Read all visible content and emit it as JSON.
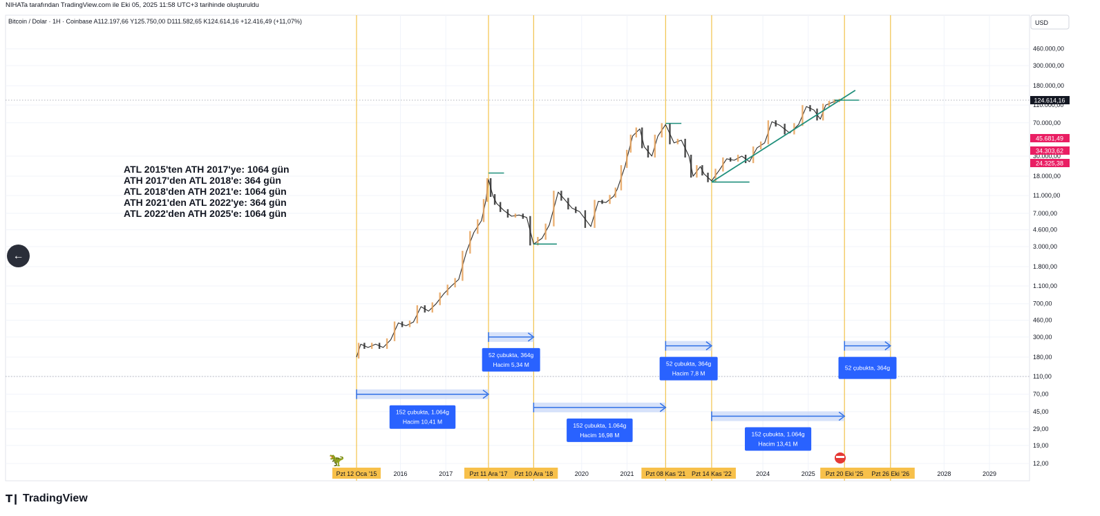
{
  "caption": "NIHATa tarafından TradingView.com ile Eki 05, 2025 11:58 UTC+3 tarihinde oluşturuldu",
  "symbol_line": "Bitcoin / Dolar · 1H · Coinbase  A112.197,66  Y125.750,00  D111.582,65  K124.614,16  +12.416,49 (+11,07%)",
  "currency_label": "USD",
  "brand": "TradingView",
  "colors": {
    "up": "#e8a25b",
    "down": "#2b2b2b",
    "vline": "#f2c34a",
    "trend": "#1f8f7b",
    "measure": "#2f6fe6",
    "measure_fill": "#c9d8f8",
    "box": "#2962ff",
    "price_tag": "#131722",
    "level_tag": "#e91e63",
    "axis_highlight": "#f7c04a"
  },
  "chart_data": {
    "type": "line",
    "title": "Bitcoin / Dolar · 1H · Coinbase",
    "y_scale": "log",
    "ylim": [
      10,
      700000
    ],
    "y_ticks": [
      "460.000,00",
      "300.000,00",
      "180.000,00",
      "110.000,00",
      "70.000,00",
      "30.000,00",
      "18.000,00",
      "11.000,00",
      "7.000,00",
      "4.600,00",
      "3.000,00",
      "1.800,00",
      "1.100,00",
      "700,00",
      "460,00",
      "300,00",
      "180,00",
      "110,00",
      "70,00",
      "45,00",
      "29,00",
      "19,00",
      "12,00"
    ],
    "y_tick_values": [
      460000,
      300000,
      180000,
      110000,
      70000,
      30000,
      18000,
      11000,
      7000,
      4600,
      3000,
      1800,
      1100,
      700,
      460,
      300,
      180,
      110,
      70,
      45,
      29,
      19,
      12
    ],
    "x_labels": [
      {
        "label": "Pzt 12 Oca '15",
        "date": "2015-01-12",
        "highlight": true
      },
      {
        "label": "2016",
        "date": "2016-01-01",
        "highlight": false
      },
      {
        "label": "2017",
        "date": "2017-01-01",
        "highlight": false
      },
      {
        "label": "Pzt 11 Ara '17",
        "date": "2017-12-11",
        "highlight": true
      },
      {
        "label": "Pzt 10 Ara '18",
        "date": "2018-12-10",
        "highlight": true
      },
      {
        "label": "2020",
        "date": "2020-01-01",
        "highlight": false
      },
      {
        "label": "2021",
        "date": "2021-01-01",
        "highlight": false
      },
      {
        "label": "Pzt 08 Kas '21",
        "date": "2021-11-08",
        "highlight": true
      },
      {
        "label": "Pzt 14 Kas '22",
        "date": "2022-11-14",
        "highlight": true
      },
      {
        "label": "2024",
        "date": "2024-01-01",
        "highlight": false
      },
      {
        "label": "2025",
        "date": "2025-01-01",
        "highlight": false
      },
      {
        "label": "Pzt 20 Eki '25",
        "date": "2025-10-20",
        "highlight": true
      },
      {
        "label": "Pzt 26 Eki '26",
        "date": "2026-10-26",
        "highlight": true
      },
      {
        "label": "2028",
        "date": "2028-01-01",
        "highlight": false
      },
      {
        "label": "2029",
        "date": "2029-01-01",
        "highlight": false
      }
    ],
    "vertical_lines": [
      "2015-01-12",
      "2017-12-11",
      "2018-12-10",
      "2021-11-08",
      "2022-11-14",
      "2025-10-20",
      "2026-10-26"
    ],
    "series": [
      {
        "x": [
          "2015-01-12",
          "2015-02-15",
          "2015-04-15",
          "2015-06-15",
          "2015-08-15",
          "2015-10-15",
          "2015-12-15",
          "2016-02-15",
          "2016-04-15",
          "2016-06-15",
          "2016-08-15",
          "2016-10-15",
          "2016-12-15",
          "2017-02-15",
          "2017-04-15",
          "2017-06-15",
          "2017-08-15",
          "2017-10-15",
          "2017-11-20",
          "2017-12-11",
          "2018-01-15",
          "2018-02-15",
          "2018-04-15",
          "2018-06-15",
          "2018-08-15",
          "2018-10-15",
          "2018-12-10",
          "2019-02-15",
          "2019-04-15",
          "2019-06-26",
          "2019-08-15",
          "2019-10-15",
          "2019-12-15",
          "2020-03-15",
          "2020-05-15",
          "2020-07-15",
          "2020-09-15",
          "2020-10-15",
          "2020-12-15",
          "2021-01-15",
          "2021-02-15",
          "2021-04-14",
          "2021-05-20",
          "2021-07-20",
          "2021-09-07",
          "2021-11-08",
          "2022-01-15",
          "2022-03-15",
          "2022-05-15",
          "2022-06-18",
          "2022-08-15",
          "2022-09-15",
          "2022-11-14",
          "2023-01-15",
          "2023-03-15",
          "2023-05-15",
          "2023-07-15",
          "2023-09-15",
          "2023-11-15",
          "2024-01-15",
          "2024-03-14",
          "2024-05-15",
          "2024-08-05",
          "2024-10-15",
          "2024-12-17",
          "2025-02-15",
          "2025-04-08",
          "2025-05-22",
          "2025-07-15",
          "2025-08-14",
          "2025-10-05"
        ],
        "y": [
          180,
          250,
          230,
          250,
          230,
          280,
          430,
          400,
          440,
          650,
          580,
          700,
          900,
          1100,
          1300,
          2600,
          4300,
          5800,
          9700,
          16500,
          11000,
          9000,
          7500,
          6500,
          6700,
          6300,
          3200,
          3700,
          5200,
          12000,
          10000,
          8000,
          7300,
          5000,
          9500,
          9200,
          10800,
          13000,
          23000,
          34000,
          50000,
          60000,
          38000,
          30000,
          50000,
          67000,
          42000,
          45000,
          30000,
          18000,
          23000,
          19000,
          16000,
          21000,
          28000,
          27000,
          30000,
          26000,
          37000,
          42000,
          72000,
          66000,
          54000,
          67000,
          106000,
          97000,
          77000,
          110000,
          118000,
          123000,
          124614
        ]
      }
    ],
    "last_price": "124.614,16",
    "levels": [
      "45.681,49",
      "34.303,62",
      "24.325,38"
    ],
    "annotations": [
      "ATL 2015'ten ATH 2017'ye: 1064 gün",
      "ATH 2017'den ATL 2018'e: 364 gün",
      "ATL 2018'den ATH 2021'e: 1064 gün",
      "ATH 2021'den ATL 2022'ye: 364 gün",
      "ATL 2022'den ATH 2025'e: 1064 gün"
    ],
    "measures": [
      {
        "from": "2015-01-12",
        "to": "2017-12-11",
        "y": 70,
        "line1": "152 çubukta, 1.064g",
        "line2": "Hacim 10,41 M"
      },
      {
        "from": "2017-12-11",
        "to": "2018-12-10",
        "y": 300,
        "line1": "52 çubukta, 364g",
        "line2": "Hacim 5,34 M"
      },
      {
        "from": "2018-12-10",
        "to": "2021-11-08",
        "y": 50,
        "line1": "152 çubukta, 1.064g",
        "line2": "Hacim 16,98 M"
      },
      {
        "from": "2021-11-08",
        "to": "2022-11-14",
        "y": 240,
        "line1": "52 çubukta, 364g",
        "line2": "Hacim 7,8 M"
      },
      {
        "from": "2022-11-14",
        "to": "2025-10-20",
        "y": 40,
        "line1": "152 çubukta, 1.064g",
        "line2": "Hacim 13,41 M"
      },
      {
        "from": "2025-10-20",
        "to": "2026-10-26",
        "y": 240,
        "line1": "52 çubukta, 364g",
        "line2": ""
      }
    ],
    "markers": [
      {
        "from": "2017-12-11",
        "to": "2018-04-15",
        "y": 19500
      },
      {
        "from": "2018-12-10",
        "to": "2019-06-15",
        "y": 3200
      },
      {
        "from": "2021-11-08",
        "to": "2022-03-15",
        "y": 69000
      },
      {
        "from": "2022-11-14",
        "to": "2023-09-15",
        "y": 15500
      },
      {
        "from": "2025-08-01",
        "to": "2026-02-15",
        "y": 124614
      }
    ],
    "trendline": {
      "from": "2022-11-14",
      "y1": 15500,
      "to": "2026-01-15",
      "y2": 160000
    },
    "reference_lines": [
      124614,
      110
    ]
  }
}
